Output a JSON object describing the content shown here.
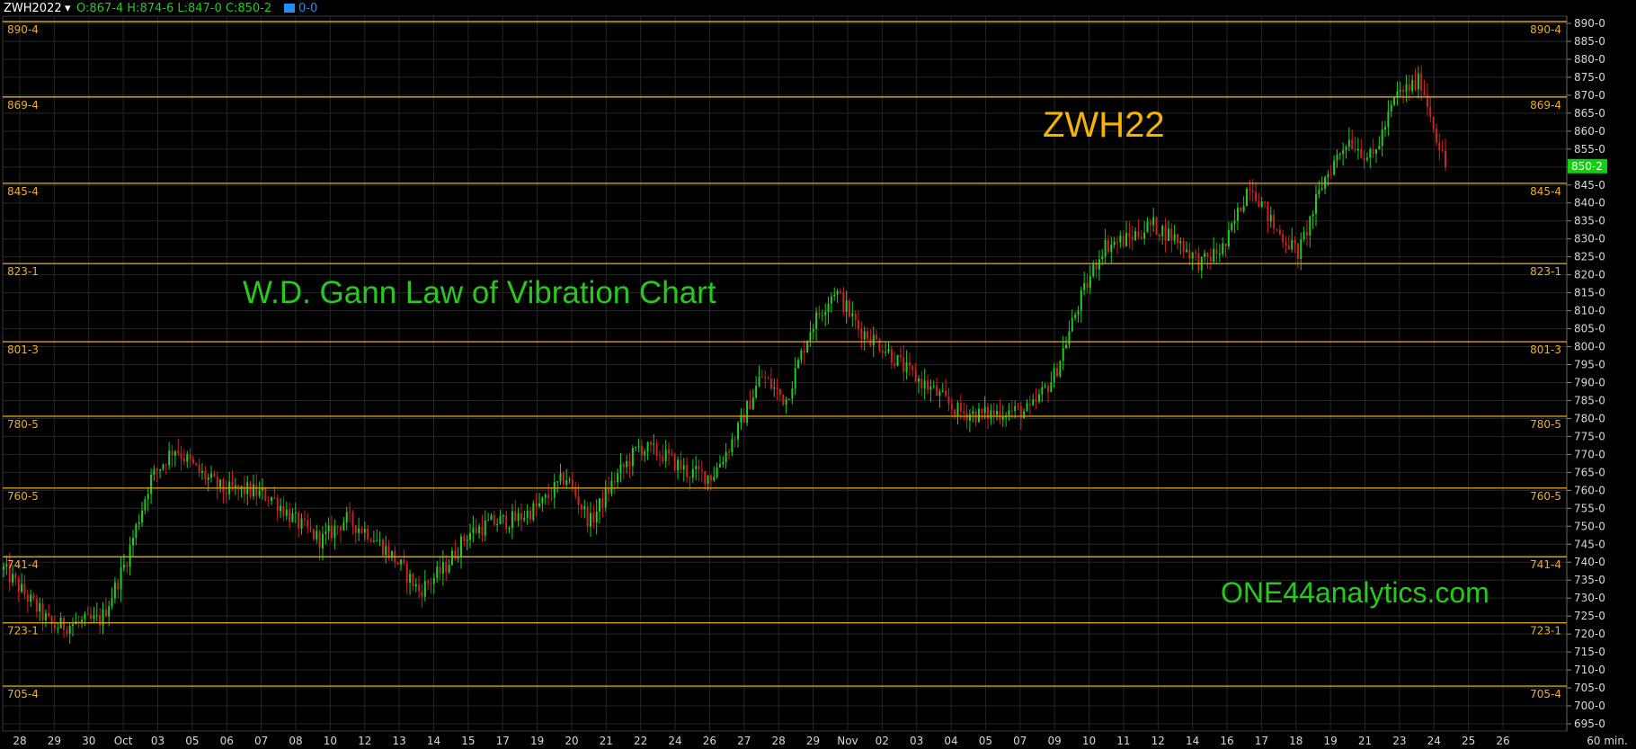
{
  "header": {
    "symbol": "ZWH2022",
    "dropdown_glyph": "▾",
    "ohlc": "O:867-4 H:874-6 L:847-0 C:850-2",
    "swatch_color": "#1e90ff",
    "volume": "0-0"
  },
  "annotations": {
    "title": "ZWH22",
    "subtitle": "W.D. Gann Law of Vibration Chart",
    "watermark": "ONE44analytics.com"
  },
  "colors": {
    "background": "#000000",
    "up": "#22cc22",
    "down": "#cc2222",
    "level_line": "#d4a017",
    "level_text": "#f0b020",
    "axis_text": "#d8d8d8",
    "grid": "#262626",
    "title": "#f5b400",
    "green_text": "#28c81e",
    "last_price_bg": "#10d010"
  },
  "chart_data": {
    "type": "candlestick",
    "timeframe_label": "60 min.",
    "ylim": [
      693,
      892
    ],
    "y_ticks": [
      "890-0",
      "885-0",
      "880-0",
      "875-0",
      "870-0",
      "865-0",
      "860-0",
      "855-0",
      "850-0",
      "845-0",
      "840-0",
      "835-0",
      "830-0",
      "825-0",
      "820-0",
      "815-0",
      "810-0",
      "805-0",
      "800-0",
      "795-0",
      "790-0",
      "785-0",
      "780-0",
      "775-0",
      "770-0",
      "765-0",
      "760-0",
      "755-0",
      "750-0",
      "745-0",
      "740-0",
      "735-0",
      "730-0",
      "725-0",
      "720-0",
      "715-0",
      "710-0",
      "705-0",
      "700-0",
      "695-0"
    ],
    "x_labels": [
      "28",
      "29",
      "30",
      "Oct",
      "03",
      "05",
      "06",
      "07",
      "08",
      "10",
      "12",
      "13",
      "14",
      "15",
      "17",
      "19",
      "20",
      "21",
      "22",
      "24",
      "26",
      "27",
      "28",
      "29",
      "Nov",
      "02",
      "03",
      "04",
      "05",
      "07",
      "09",
      "10",
      "11",
      "12",
      "14",
      "16",
      "17",
      "18",
      "19",
      "21",
      "23",
      "24",
      "25",
      "26"
    ],
    "gann_levels": [
      {
        "label": "890-4",
        "value": 890.5
      },
      {
        "label": "869-4",
        "value": 869.5
      },
      {
        "label": "845-4",
        "value": 845.5
      },
      {
        "label": "823-1",
        "value": 823.125
      },
      {
        "label": "801-3",
        "value": 801.375
      },
      {
        "label": "780-5",
        "value": 780.625
      },
      {
        "label": "760-5",
        "value": 760.625
      },
      {
        "label": "741-4",
        "value": 741.5
      },
      {
        "label": "723-1",
        "value": 723.125
      },
      {
        "label": "705-4",
        "value": 705.5
      }
    ],
    "last_price": {
      "label": "850-2",
      "value": 850.25
    },
    "price_path": [
      [
        0,
        738
      ],
      [
        2,
        722
      ],
      [
        4,
        724
      ],
      [
        5,
        740
      ],
      [
        6,
        763
      ],
      [
        7,
        772
      ],
      [
        8,
        765
      ],
      [
        9,
        760
      ],
      [
        10,
        760
      ],
      [
        11,
        758
      ],
      [
        12,
        751
      ],
      [
        13,
        746
      ],
      [
        14,
        752
      ],
      [
        15,
        748
      ],
      [
        16,
        741
      ],
      [
        17,
        732
      ],
      [
        18,
        738
      ],
      [
        19,
        748
      ],
      [
        20,
        751
      ],
      [
        21,
        752
      ],
      [
        22,
        756
      ],
      [
        23,
        764
      ],
      [
        24,
        751
      ],
      [
        25,
        763
      ],
      [
        26,
        772
      ],
      [
        27,
        770
      ],
      [
        28,
        765
      ],
      [
        29,
        764
      ],
      [
        30,
        776
      ],
      [
        31,
        792
      ],
      [
        32,
        785
      ],
      [
        33,
        805
      ],
      [
        34,
        816
      ],
      [
        35,
        805
      ],
      [
        36,
        800
      ],
      [
        37,
        793
      ],
      [
        38,
        788
      ],
      [
        39,
        782
      ],
      [
        40,
        781
      ],
      [
        41,
        782
      ],
      [
        42,
        782
      ],
      [
        43,
        792
      ],
      [
        44,
        812
      ],
      [
        45,
        828
      ],
      [
        46,
        830
      ],
      [
        47,
        834
      ],
      [
        48,
        830
      ],
      [
        49,
        823
      ],
      [
        50,
        828
      ],
      [
        51,
        846
      ],
      [
        52,
        833
      ],
      [
        53,
        826
      ],
      [
        54,
        846
      ],
      [
        55,
        858
      ],
      [
        56,
        852
      ],
      [
        57,
        870
      ],
      [
        58,
        874
      ],
      [
        59,
        850
      ]
    ],
    "bars_count": 480
  },
  "footer": {
    "timeframe": "60 min."
  }
}
